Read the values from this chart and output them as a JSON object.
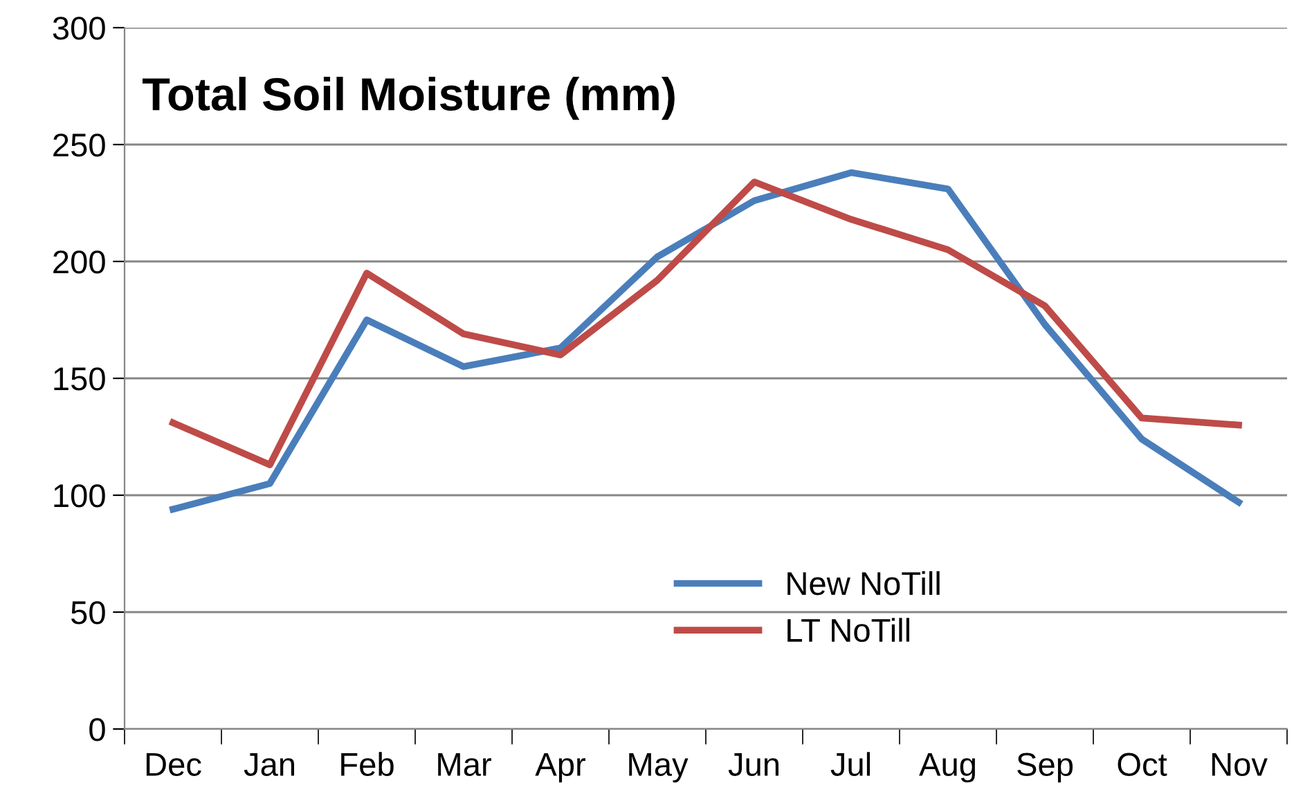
{
  "chart_data": {
    "type": "line",
    "title": "Total Soil Moisture (mm)",
    "categories": [
      "Dec",
      "Jan",
      "Feb",
      "Mar",
      "Apr",
      "May",
      "Jun",
      "Jul",
      "Aug",
      "Sep",
      "Oct",
      "Nov"
    ],
    "series": [
      {
        "name": "New NoTill",
        "color": "#4a7ebb",
        "values": [
          94,
          105,
          175,
          155,
          163,
          202,
          226,
          238,
          231,
          173,
          124,
          97
        ]
      },
      {
        "name": "LT NoTill",
        "color": "#be4b48",
        "values": [
          131,
          113,
          195,
          169,
          160,
          192,
          234,
          218,
          205,
          181,
          133,
          130
        ]
      }
    ],
    "ylim": [
      0,
      300
    ],
    "yticks": [
      0,
      50,
      100,
      150,
      200,
      250,
      300
    ],
    "grid": "y",
    "legend": "bottom",
    "marker": "none",
    "line_style": "solid"
  }
}
